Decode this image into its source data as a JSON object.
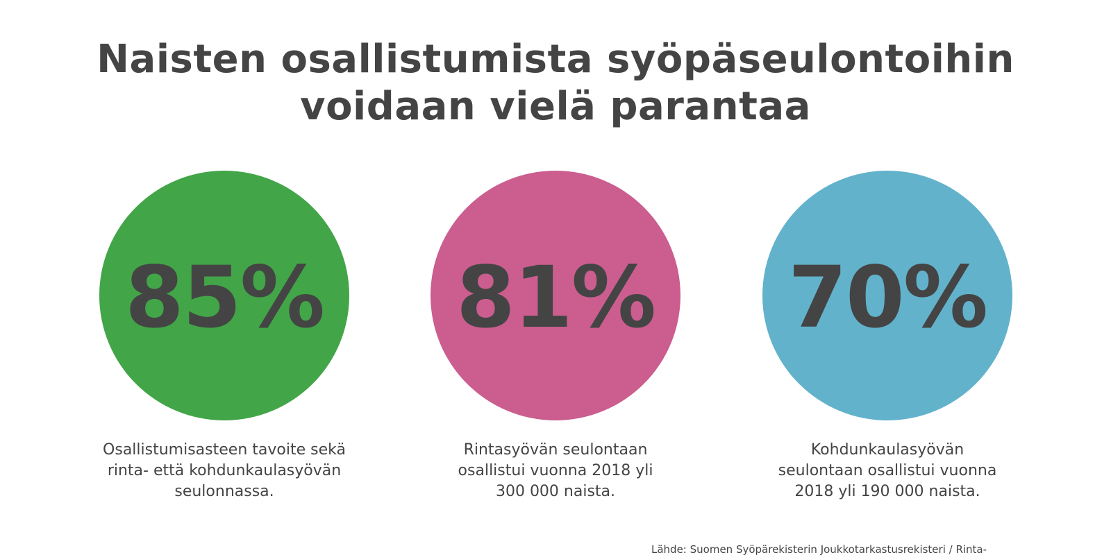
{
  "title": {
    "line1": "Naisten osallistumista syöpäseulontoihin",
    "line2": "voidaan vielä parantaa"
  },
  "stats": [
    {
      "value": "85%",
      "color": "#42a548",
      "caption_lines": [
        "Osallistumisasteen tavoite sekä",
        "rinta- että kohdunkaulasyövän",
        "seulonnassa."
      ]
    },
    {
      "value": "81%",
      "color": "#cb5d8f",
      "caption_lines": [
        "Rintasyövän seulontaan",
        "osallistui vuonna 2018 yli",
        "300 000 naista."
      ]
    },
    {
      "value": "70%",
      "color": "#62b2cc",
      "caption_lines": [
        "Kohdunkaulasyövän",
        "seulontaan osallistui vuonna",
        "2018 yli 190 000 naista."
      ]
    }
  ],
  "source": "Lähde: Suomen Syöpärekisterin Joukkotarkastusrekisteri / Rinta-"
}
